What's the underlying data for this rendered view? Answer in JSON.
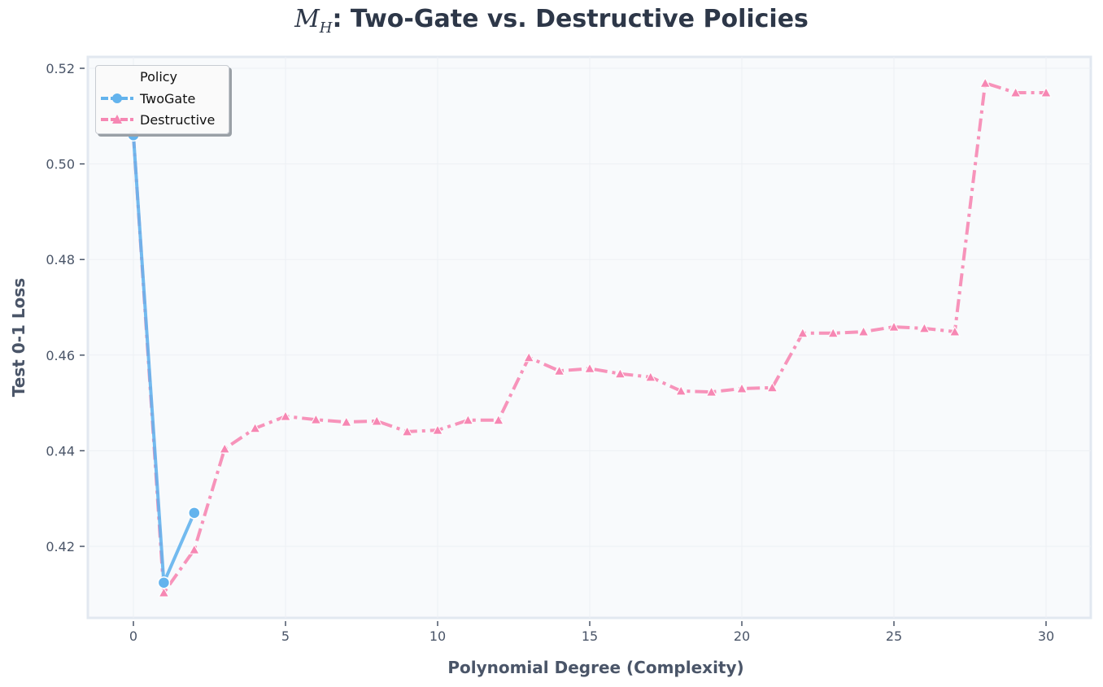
{
  "chart_data": {
    "type": "line",
    "title": "M_H: Two-Gate vs. Destructive Policies",
    "title_math": "M",
    "title_math_sub": "H",
    "title_rest": ": Two-Gate vs. Destructive Policies",
    "xlabel": "Polynomial Degree (Complexity)",
    "ylabel": "Test 0-1 Loss",
    "xlim": [
      -1.5,
      31.5
    ],
    "ylim": [
      0.405,
      0.522
    ],
    "xticks": [
      0,
      5,
      10,
      15,
      20,
      25,
      30
    ],
    "yticks": [
      0.42,
      0.44,
      0.46,
      0.48,
      0.5,
      0.52
    ],
    "ytick_labels": [
      "0.42",
      "0.44",
      "0.46",
      "0.48",
      "0.50",
      "0.52"
    ],
    "grid": true,
    "legend": {
      "title": "Policy",
      "position": "upper left",
      "entries": [
        "TwoGate",
        "Destructive"
      ]
    },
    "series": [
      {
        "name": "TwoGate",
        "color": "#63b3ed",
        "marker": "circle",
        "linestyle": "solid",
        "x": [
          0,
          1,
          2
        ],
        "values": [
          0.506,
          0.4124,
          0.427
        ]
      },
      {
        "name": "Destructive",
        "color": "#f687b3",
        "marker": "triangle",
        "linestyle": "dashdot",
        "x": [
          0,
          1,
          2,
          3,
          4,
          5,
          6,
          7,
          8,
          9,
          10,
          11,
          12,
          13,
          14,
          15,
          16,
          17,
          18,
          19,
          20,
          21,
          22,
          23,
          24,
          25,
          26,
          27,
          28,
          29,
          30
        ],
        "values": [
          0.506,
          0.4103,
          0.4193,
          0.4404,
          0.4447,
          0.4472,
          0.4465,
          0.446,
          0.4462,
          0.444,
          0.4443,
          0.4464,
          0.4464,
          0.4595,
          0.4567,
          0.4572,
          0.4561,
          0.4554,
          0.4525,
          0.4523,
          0.453,
          0.4532,
          0.4646,
          0.4646,
          0.4649,
          0.4659,
          0.4656,
          0.4649,
          0.5169,
          0.5149,
          0.5149
        ]
      }
    ]
  }
}
